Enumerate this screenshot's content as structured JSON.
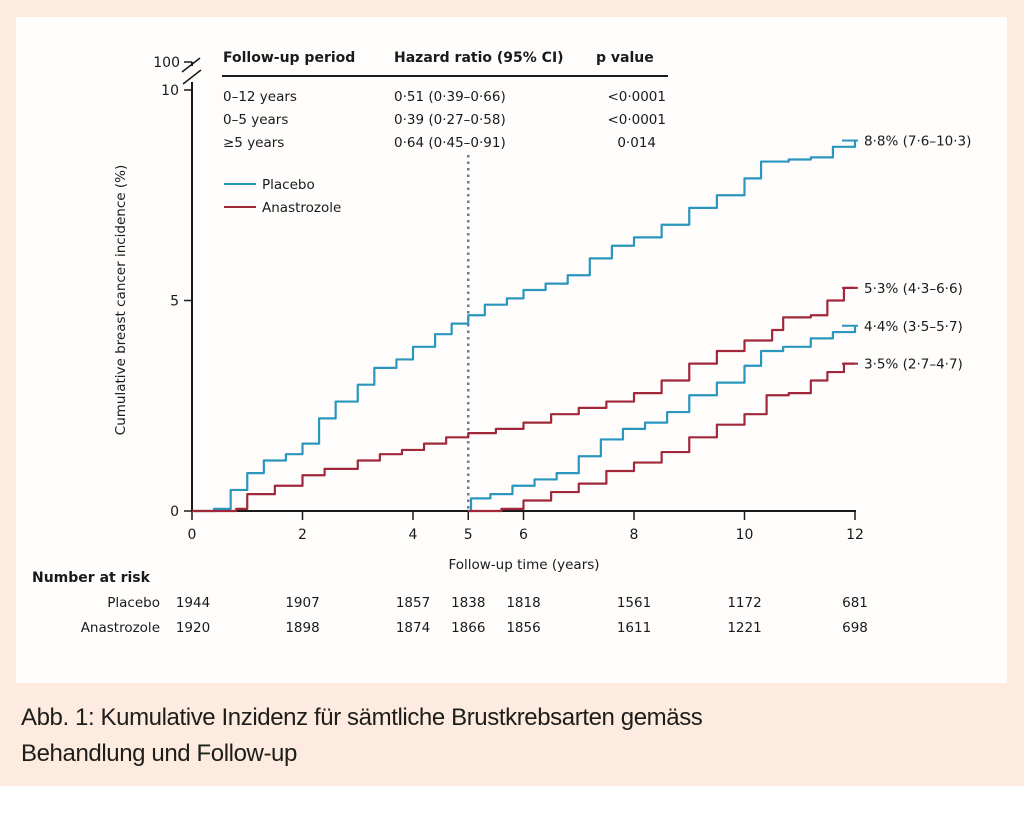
{
  "caption": {
    "line1": "Abb. 1: Kumulative Inzidenz für sämtliche Brustkrebsarten gemäss",
    "line2": "Behandlung und Follow-up"
  },
  "colors": {
    "background": "#fdebdf",
    "panel": "#fffdfb",
    "placebo": "#2a96bd",
    "anastrozole": "#a0283a",
    "axis": "#1a1a1a",
    "divider": "#6d7f8a"
  },
  "chart_data": {
    "type": "line",
    "title": "",
    "xlabel": "Follow-up time (years)",
    "ylabel": "Cumulative breast cancer incidence (%)",
    "xlim": [
      0,
      12
    ],
    "ylim": [
      0,
      10
    ],
    "y_break_label": "100",
    "x_ticks": [
      0,
      2,
      4,
      5,
      6,
      8,
      10,
      12
    ],
    "x_tick_labels": [
      "0",
      "2",
      "4",
      "5",
      "6",
      "8",
      "10",
      "12"
    ],
    "y_ticks": [
      0,
      5,
      10
    ],
    "y_tick_labels": [
      "0",
      "5",
      "10"
    ],
    "grid": false,
    "reference_line_x": 5,
    "legend": {
      "placement": "top-left",
      "entries": [
        {
          "label": "Placebo",
          "series": "placebo"
        },
        {
          "label": "Anastrozole",
          "series": "anastrozole"
        }
      ]
    },
    "series": [
      {
        "name": "Placebo (0–12 years)",
        "color_key": "placebo",
        "x": [
          0,
          0.4,
          0.7,
          1.0,
          1.3,
          1.7,
          2.0,
          2.3,
          2.6,
          3.0,
          3.3,
          3.7,
          4.0,
          4.4,
          4.7,
          5.0,
          5.3,
          5.7,
          6.0,
          6.4,
          6.8,
          7.2,
          7.6,
          8.0,
          8.5,
          9.0,
          9.5,
          10.0,
          10.3,
          10.8,
          11.2,
          11.6,
          12.0
        ],
        "y": [
          0,
          0.05,
          0.5,
          0.9,
          1.2,
          1.35,
          1.6,
          2.2,
          2.6,
          3.0,
          3.4,
          3.6,
          3.9,
          4.2,
          4.45,
          4.65,
          4.9,
          5.05,
          5.25,
          5.4,
          5.6,
          6.0,
          6.3,
          6.5,
          6.8,
          7.2,
          7.5,
          7.9,
          8.3,
          8.35,
          8.4,
          8.65,
          8.8
        ]
      },
      {
        "name": "Anastrozole (0–12 years)",
        "color_key": "anastrozole",
        "x": [
          0,
          0.8,
          1.0,
          1.5,
          2.0,
          2.4,
          3.0,
          3.4,
          3.8,
          4.2,
          4.6,
          5.0,
          5.5,
          6.0,
          6.5,
          7.0,
          7.5,
          8.0,
          8.5,
          9.0,
          9.5,
          10.0,
          10.5,
          10.7,
          11.2,
          11.5,
          11.8,
          12.0
        ],
        "y": [
          0,
          0.05,
          0.4,
          0.6,
          0.85,
          1.0,
          1.2,
          1.35,
          1.45,
          1.6,
          1.75,
          1.85,
          1.95,
          2.1,
          2.3,
          2.45,
          2.6,
          2.8,
          3.1,
          3.5,
          3.8,
          4.05,
          4.3,
          4.6,
          4.65,
          5.0,
          5.3,
          5.3
        ]
      },
      {
        "name": "Placebo (≥5 years)",
        "color_key": "placebo",
        "x": [
          5.0,
          5.05,
          5.4,
          5.8,
          6.2,
          6.6,
          7.0,
          7.4,
          7.8,
          8.2,
          8.6,
          9.0,
          9.5,
          10.0,
          10.3,
          10.7,
          11.2,
          11.6,
          12.0
        ],
        "y": [
          0,
          0.3,
          0.4,
          0.6,
          0.75,
          0.9,
          1.3,
          1.7,
          1.95,
          2.1,
          2.35,
          2.75,
          3.05,
          3.45,
          3.8,
          3.9,
          4.1,
          4.25,
          4.4
        ]
      },
      {
        "name": "Anastrozole (≥5 years)",
        "color_key": "anastrozole",
        "x": [
          5.0,
          5.6,
          6.0,
          6.5,
          7.0,
          7.5,
          8.0,
          8.5,
          9.0,
          9.5,
          10.0,
          10.4,
          10.8,
          11.2,
          11.5,
          11.8,
          12.0
        ],
        "y": [
          0,
          0.05,
          0.25,
          0.45,
          0.65,
          0.95,
          1.15,
          1.4,
          1.75,
          2.05,
          2.3,
          2.75,
          2.8,
          3.1,
          3.3,
          3.5,
          3.5
        ]
      }
    ],
    "end_labels": [
      {
        "text": "8·8% (7·6–10·3)",
        "y": 8.8,
        "color_key": "placebo"
      },
      {
        "text": "5·3% (4·3–6·6)",
        "y": 5.3,
        "color_key": "anastrozole"
      },
      {
        "text": "4·4% (3·5–5·7)",
        "y": 4.4,
        "color_key": "placebo"
      },
      {
        "text": "3·5% (2·7–4·7)",
        "y": 3.5,
        "color_key": "anastrozole"
      }
    ],
    "hazard_table": {
      "headers": [
        "Follow-up period",
        "Hazard ratio (95% CI)",
        "p value"
      ],
      "rows": [
        [
          "0–12 years",
          "0·51 (0·39–0·66)",
          "<0·0001"
        ],
        [
          "0–5 years",
          "0·39 (0·27–0·58)",
          "<0·0001"
        ],
        [
          "≥5 years",
          "0·64 (0·45–0·91)",
          "0·014"
        ]
      ]
    },
    "risk_table": {
      "title": "Number at risk",
      "times": [
        0,
        2,
        4,
        5,
        6,
        8,
        10,
        12
      ],
      "rows": [
        {
          "label": "Placebo",
          "values": [
            "1944",
            "1907",
            "1857",
            "1838",
            "1818",
            "1561",
            "1172",
            "681"
          ]
        },
        {
          "label": "Anastrozole",
          "values": [
            "1920",
            "1898",
            "1874",
            "1866",
            "1856",
            "1611",
            "1221",
            "698"
          ]
        }
      ]
    }
  }
}
